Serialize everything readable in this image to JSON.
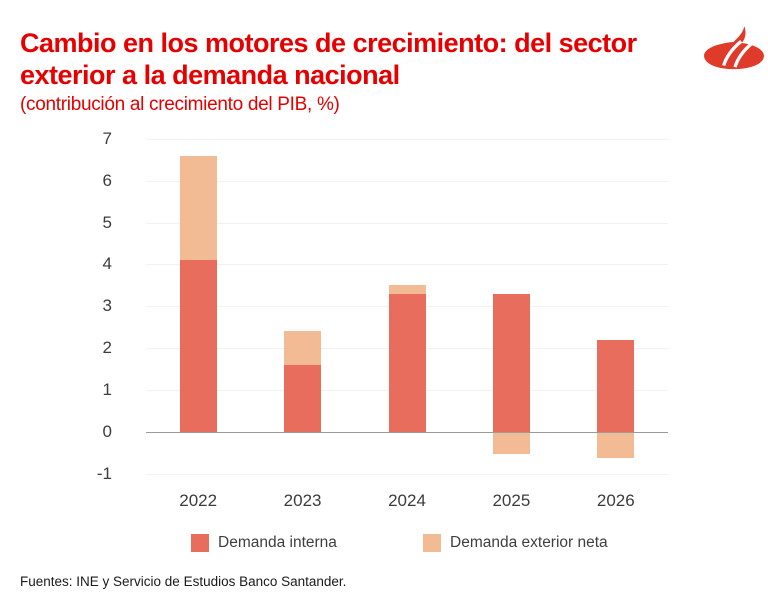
{
  "header": {
    "title_line1": "Cambio en los motores de crecimiento: del sector",
    "title_line2": "exterior a la demanda nacional",
    "subtitle": "(contribución al crecimiento del PIB, %)"
  },
  "logo": {
    "name": "santander-flame",
    "color": "#E03A2B"
  },
  "chart_data": {
    "type": "bar",
    "stacked": true,
    "title": "Cambio en los motores de crecimiento: del sector exterior a la demanda nacional",
    "subtitle": "(contribución al crecimiento del PIB, %)",
    "categories": [
      "2022",
      "2023",
      "2024",
      "2025",
      "2026"
    ],
    "series": [
      {
        "name": "Demanda interna",
        "color": "#E96D5C",
        "values": [
          4.1,
          1.6,
          3.3,
          3.3,
          2.2
        ]
      },
      {
        "name": "Demanda exterior neta",
        "color": "#F2BB94",
        "values": [
          2.5,
          0.8,
          0.2,
          -0.5,
          -0.6
        ]
      }
    ],
    "totals": [
      6.6,
      2.4,
      3.5,
      2.8,
      1.6
    ],
    "xlabel": "",
    "ylabel": "",
    "ylim": [
      -1,
      7
    ],
    "yticks": [
      7,
      6,
      5,
      4,
      3,
      2,
      1,
      0,
      -1
    ],
    "grid": "horizontal",
    "legend_position": "bottom"
  },
  "colors": {
    "brand_red": "#E60000",
    "axis_text": "#3C3C3C",
    "gridline": "#F2F2F2",
    "zero_line": "#9B9B9B",
    "background": "#FFFFFF"
  },
  "footer": {
    "text": "Fuentes: INE y Servicio de Estudios Banco Santander."
  }
}
